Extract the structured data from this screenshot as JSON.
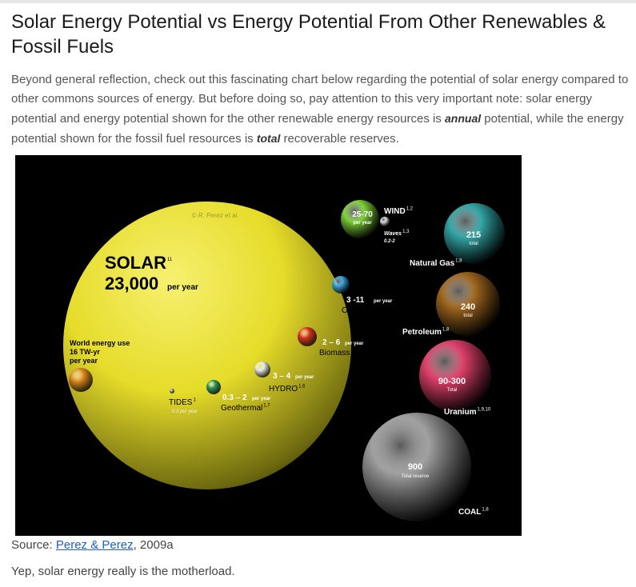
{
  "article": {
    "title": "Solar Energy Potential vs Energy Potential From Other Renewables & Fossil Fuels",
    "intro_part1": "Beyond general reflection, check out this fascinating chart below regarding the potential of solar energy compared to other commons sources of energy. But before doing so, pay attention to this very important note: solar energy potential and energy potential shown for the other renewable energy resources is ",
    "intro_em1": "annual",
    "intro_part2": " potential, while the energy potential shown for the fossil fuel resources is ",
    "intro_em2": "total",
    "intro_part3": " recoverable reserves.",
    "caption_prefix": "Source: ",
    "caption_link": "Perez & Perez",
    "caption_suffix": ", 2009a",
    "outro": "Yep, solar energy really is the motherload."
  },
  "colors": {
    "solar": "#e6dc2a",
    "wind": "#7fd23a",
    "natural_gas": "#33a6a6",
    "petroleum": "#a0661e",
    "uranium": "#e0406a",
    "coal": "#a0a0a0",
    "otec": "#3aa8e0",
    "biomass": "#dd3322",
    "hydro": "#e8e8e8",
    "geothermal": "#2a9a66",
    "tides": "#8888aa",
    "world_use": "#e08a1e"
  },
  "chart_data": {
    "type": "bubble",
    "copyright": "© R. Perez et al.",
    "items": [
      {
        "key": "solar",
        "name": "SOLAR",
        "sup": "11",
        "value": "23,000",
        "unit": "per year",
        "magnitude": 23000
      },
      {
        "key": "world_use",
        "name": "World energy use",
        "value": "16 TW-yr",
        "unit": "per year",
        "magnitude": 16
      },
      {
        "key": "wind",
        "name": "WIND",
        "sup": "1,2",
        "value": "25-70",
        "unit": "per year",
        "magnitude": 70
      },
      {
        "key": "waves",
        "name": "Waves",
        "sup": "1,3",
        "value": "0.2-2",
        "magnitude": 2
      },
      {
        "key": "natural_gas",
        "name": "Natural Gas",
        "sup": "1,8",
        "value": "215",
        "unit": "total",
        "magnitude": 215
      },
      {
        "key": "petroleum",
        "name": "Petroleum",
        "sup": "1,8",
        "value": "240",
        "unit": "total",
        "magnitude": 240
      },
      {
        "key": "uranium",
        "name": "Uranium",
        "sup": "1,9,10",
        "value": "90-300",
        "unit": "Total",
        "magnitude": 300
      },
      {
        "key": "coal",
        "name": "COAL",
        "sup": "1,8",
        "value": "900",
        "unit": "Total reserve",
        "magnitude": 900
      },
      {
        "key": "otec",
        "name": "OTEC",
        "sup": "1,4",
        "value": "3 -11",
        "unit": "per year",
        "magnitude": 11
      },
      {
        "key": "biomass",
        "name": "Biomass",
        "sup": "1,5",
        "value": "2 – 6",
        "unit": "per year",
        "magnitude": 6
      },
      {
        "key": "hydro",
        "name": "HYDRO",
        "sup": "1,6",
        "value": "3 – 4",
        "unit": "per year",
        "magnitude": 4
      },
      {
        "key": "geothermal",
        "name": "Geothermal",
        "sup": "1,7",
        "value": "0.3 – 2",
        "unit": "per year",
        "magnitude": 2
      },
      {
        "key": "tides",
        "name": "TIDES",
        "sup": "1",
        "value": "0.3 per year",
        "magnitude": 0.3
      }
    ]
  }
}
